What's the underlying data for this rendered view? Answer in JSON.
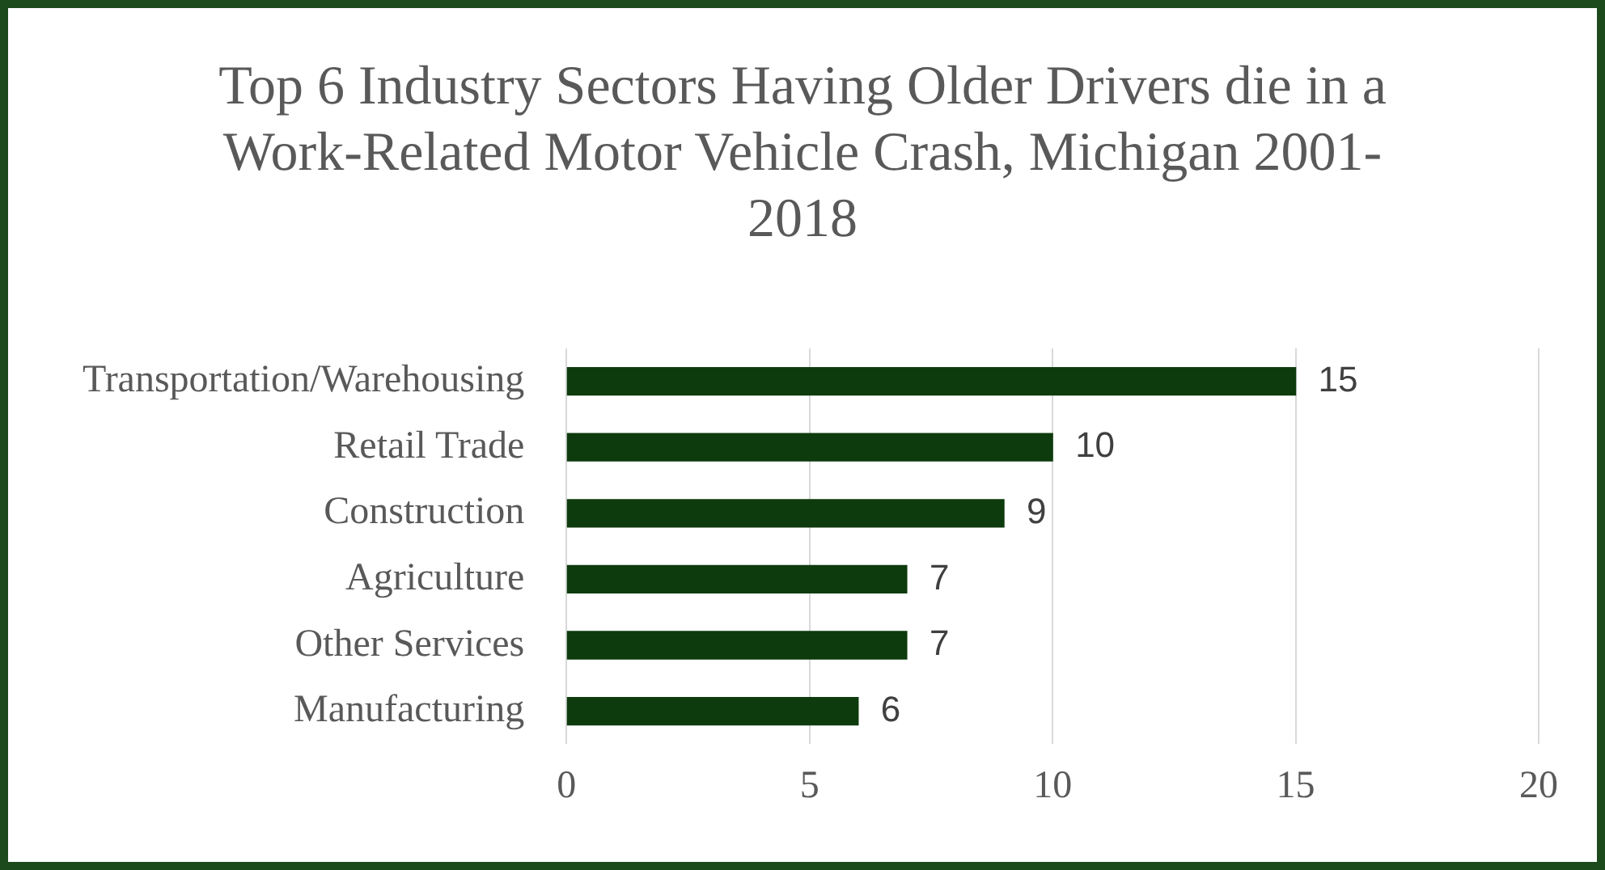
{
  "chart_data": {
    "type": "bar",
    "orientation": "horizontal",
    "title": "Top 6 Industry Sectors Having Older Drivers die in a Work-Related Motor Vehicle Crash, Michigan 2001-2018",
    "categories": [
      "Transportation/Warehousing",
      "Retail Trade",
      "Construction",
      "Agriculture",
      "Other Services",
      "Manufacturing"
    ],
    "values": [
      15,
      10,
      9,
      7,
      7,
      6
    ],
    "color": "#0d3b0d",
    "xlim": [
      0,
      20
    ],
    "xticks": [
      0,
      5,
      10,
      15,
      20
    ],
    "grid": "x",
    "legend": false,
    "data_labels": true
  }
}
